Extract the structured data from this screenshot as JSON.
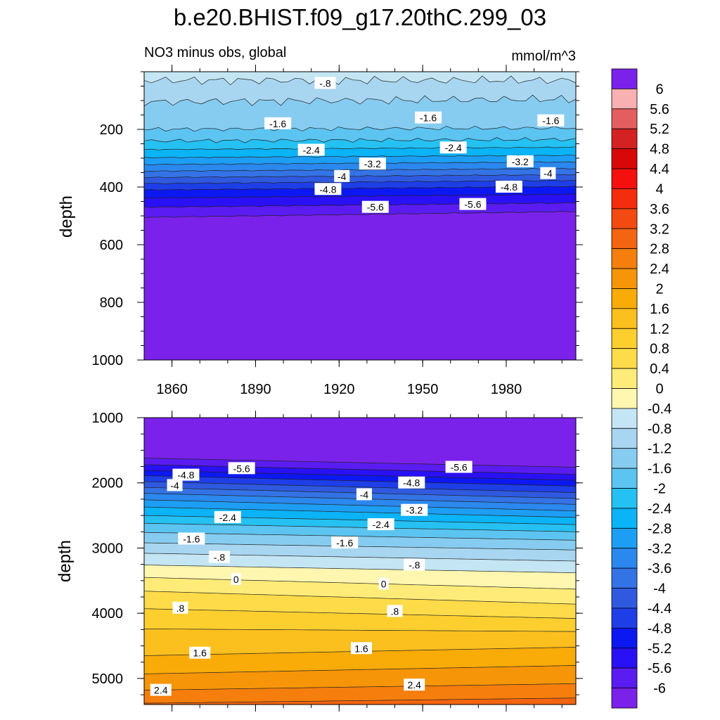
{
  "title": "b.e20.BHIST.f09_g17.20thC.299_03",
  "chart_data": [
    {
      "type": "heatmap",
      "subtitle_left": "NO3 minus obs, global",
      "subtitle_right": "mmol/m^3",
      "ylabel": "depth",
      "xlim": [
        1850,
        2005
      ],
      "ylim": [
        1000,
        0
      ],
      "x_ticks": [
        "1860",
        "1890",
        "1920",
        "1950",
        "1980"
      ],
      "y_ticks": [
        "200",
        "400",
        "600",
        "800",
        "1000"
      ],
      "contours": [
        {
          "value": -0.8,
          "depth_start": 30,
          "depth_end": 30
        },
        {
          "value": -1.2,
          "depth_start": 105,
          "depth_end": 95
        },
        {
          "value": -1.6,
          "depth_start": 200,
          "depth_end": 195
        },
        {
          "value": -2.0,
          "depth_start": 240,
          "depth_end": 235
        },
        {
          "value": -2.4,
          "depth_start": 270,
          "depth_end": 262
        },
        {
          "value": -2.8,
          "depth_start": 298,
          "depth_end": 290
        },
        {
          "value": -3.2,
          "depth_start": 322,
          "depth_end": 313
        },
        {
          "value": -3.6,
          "depth_start": 345,
          "depth_end": 336
        },
        {
          "value": -4.0,
          "depth_start": 367,
          "depth_end": 357
        },
        {
          "value": -4.4,
          "depth_start": 388,
          "depth_end": 377
        },
        {
          "value": -4.8,
          "depth_start": 410,
          "depth_end": 398
        },
        {
          "value": -5.2,
          "depth_start": 438,
          "depth_end": 425
        },
        {
          "value": -5.6,
          "depth_start": 470,
          "depth_end": 455
        },
        {
          "value": -6.0,
          "depth_start": 505,
          "depth_end": 485
        }
      ],
      "labels": [
        {
          "text": "-.8",
          "year": 1915,
          "depth": 40
        },
        {
          "text": "-1.6",
          "year": 1898,
          "depth": 180
        },
        {
          "text": "-1.6",
          "year": 1952,
          "depth": 160
        },
        {
          "text": "-1.6",
          "year": 1996,
          "depth": 170
        },
        {
          "text": "-2.4",
          "year": 1910,
          "depth": 272
        },
        {
          "text": "-2.4",
          "year": 1961,
          "depth": 264
        },
        {
          "text": "-3.2",
          "year": 1932,
          "depth": 320
        },
        {
          "text": "-3.2",
          "year": 1985,
          "depth": 312
        },
        {
          "text": "-4",
          "year": 1921,
          "depth": 363
        },
        {
          "text": "-4",
          "year": 1995,
          "depth": 353
        },
        {
          "text": "-4.8",
          "year": 1916,
          "depth": 408
        },
        {
          "text": "-4.8",
          "year": 1981,
          "depth": 400
        },
        {
          "text": "-5.6",
          "year": 1933,
          "depth": 470
        },
        {
          "text": "-5.6",
          "year": 1968,
          "depth": 460
        }
      ]
    },
    {
      "type": "heatmap",
      "ylabel": "depth",
      "xlim": [
        1850,
        2005
      ],
      "ylim": [
        5400,
        1000
      ],
      "y_ticks": [
        "1000",
        "2000",
        "3000",
        "4000",
        "5000"
      ],
      "contours": [
        {
          "value": -6.0,
          "depth_start": 1620,
          "depth_end": 1760
        },
        {
          "value": -5.6,
          "depth_start": 1720,
          "depth_end": 1870
        },
        {
          "value": -5.2,
          "depth_start": 1810,
          "depth_end": 1960
        },
        {
          "value": -4.8,
          "depth_start": 1890,
          "depth_end": 2050
        },
        {
          "value": -4.4,
          "depth_start": 1980,
          "depth_end": 2150
        },
        {
          "value": -4.0,
          "depth_start": 2070,
          "depth_end": 2240
        },
        {
          "value": -3.6,
          "depth_start": 2160,
          "depth_end": 2330
        },
        {
          "value": -3.2,
          "depth_start": 2260,
          "depth_end": 2430
        },
        {
          "value": -2.8,
          "depth_start": 2370,
          "depth_end": 2530
        },
        {
          "value": -2.4,
          "depth_start": 2500,
          "depth_end": 2640
        },
        {
          "value": -2.0,
          "depth_start": 2620,
          "depth_end": 2750
        },
        {
          "value": -1.6,
          "depth_start": 2760,
          "depth_end": 2880
        },
        {
          "value": -1.2,
          "depth_start": 2920,
          "depth_end": 3030
        },
        {
          "value": -0.8,
          "depth_start": 3080,
          "depth_end": 3200
        },
        {
          "value": -0.4,
          "depth_start": 3260,
          "depth_end": 3380
        },
        {
          "value": 0.0,
          "depth_start": 3450,
          "depth_end": 3630
        },
        {
          "value": 0.4,
          "depth_start": 3660,
          "depth_end": 3860
        },
        {
          "value": 0.8,
          "depth_start": 3930,
          "depth_end": 4080
        },
        {
          "value": 1.2,
          "depth_start": 4240,
          "depth_end": 4280
        },
        {
          "value": 1.6,
          "depth_start": 4650,
          "depth_end": 4520
        },
        {
          "value": 2.0,
          "depth_start": 4930,
          "depth_end": 4800
        },
        {
          "value": 2.4,
          "depth_start": 5180,
          "depth_end": 5080
        },
        {
          "value": 2.8,
          "depth_start": 5380,
          "depth_end": 5300
        }
      ],
      "labels": [
        {
          "text": "-5.6",
          "year": 1885,
          "depth": 1780
        },
        {
          "text": "-5.6",
          "year": 1963,
          "depth": 1760
        },
        {
          "text": "-4.8",
          "year": 1865,
          "depth": 1880
        },
        {
          "text": "-4.8",
          "year": 1946,
          "depth": 2000
        },
        {
          "text": "-4",
          "year": 1861,
          "depth": 2040
        },
        {
          "text": "-4",
          "year": 1929,
          "depth": 2180
        },
        {
          "text": "-3.2",
          "year": 1947,
          "depth": 2420
        },
        {
          "text": "-2.4",
          "year": 1880,
          "depth": 2530
        },
        {
          "text": "-2.4",
          "year": 1935,
          "depth": 2640
        },
        {
          "text": "-1.6",
          "year": 1867,
          "depth": 2860
        },
        {
          "text": "-1.6",
          "year": 1922,
          "depth": 2920
        },
        {
          "text": "-.8",
          "year": 1877,
          "depth": 3140
        },
        {
          "text": "-.8",
          "year": 1947,
          "depth": 3260
        },
        {
          "text": "0",
          "year": 1883,
          "depth": 3480
        },
        {
          "text": "0",
          "year": 1936,
          "depth": 3550
        },
        {
          "text": ".8",
          "year": 1863,
          "depth": 3920
        },
        {
          "text": ".8",
          "year": 1940,
          "depth": 3970
        },
        {
          "text": "1.6",
          "year": 1870,
          "depth": 4610
        },
        {
          "text": "1.6",
          "year": 1928,
          "depth": 4540
        },
        {
          "text": "2.4",
          "year": 1856,
          "depth": 5180
        },
        {
          "text": "2.4",
          "year": 1947,
          "depth": 5100
        }
      ]
    }
  ],
  "colorbar": {
    "levels": [
      "-6",
      "-5.6",
      "-5.2",
      "-4.8",
      "-4.4",
      "-4",
      "-3.6",
      "-3.2",
      "-2.8",
      "-2.4",
      "-2",
      "-1.6",
      "-1.2",
      "-0.8",
      "-0.4",
      "0",
      "0.4",
      "0.8",
      "1.2",
      "1.6",
      "2",
      "2.4",
      "2.8",
      "3.2",
      "3.6",
      "4",
      "4.4",
      "4.8",
      "5.2",
      "5.6",
      "6"
    ],
    "colors": [
      "#7b22ea",
      "#5a1cf0",
      "#2a10f4",
      "#0c18f2",
      "#1e3ee8",
      "#2f5ae0",
      "#3473e6",
      "#2b88ee",
      "#1d9ef5",
      "#0bb3f7",
      "#25c1f2",
      "#5cc4f1",
      "#86ccf0",
      "#a8d6f1",
      "#c4e6f4",
      "#fff6b0",
      "#ffec78",
      "#fedb48",
      "#fccf2f",
      "#fbbf1e",
      "#f9ab08",
      "#f79508",
      "#f57e0c",
      "#f36510",
      "#f24a10",
      "#f42d0e",
      "#f4100c",
      "#d90808",
      "#d42222",
      "#e45e60",
      "#f9b0b0",
      "#7b22ea"
    ]
  }
}
